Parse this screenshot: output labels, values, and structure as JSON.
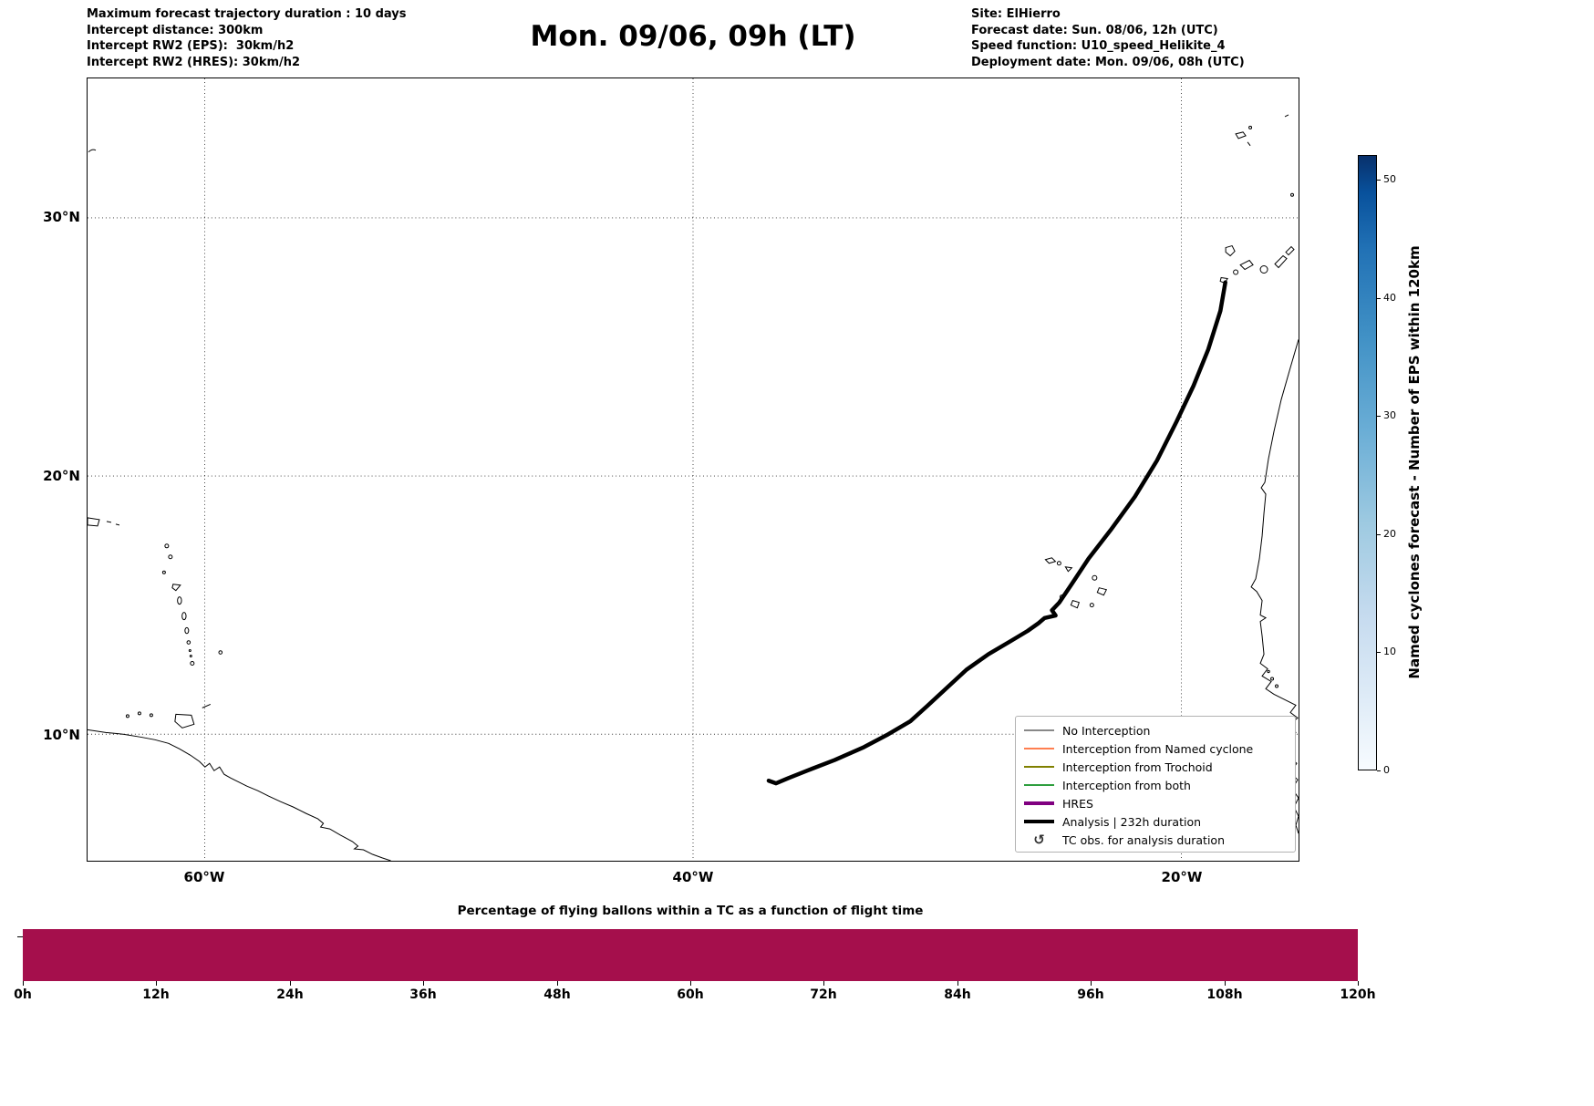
{
  "header": {
    "left_lines": [
      "Maximum forecast trajectory duration : 10 days",
      "Intercept distance: 300km",
      "Intercept RW2 (EPS):  30km/h2",
      "Intercept RW2 (HRES): 30km/h2"
    ],
    "title": "Mon. 09/06, 09h (LT)",
    "right_lines": [
      "Site: ElHierro",
      "Forecast date: Sun. 08/06, 12h (UTC)",
      "Speed function: U10_speed_Helikite_4",
      "Deployment date: Mon. 09/06, 08h (UTC)"
    ]
  },
  "map": {
    "lat_tick_labels": [
      "30°N",
      "20°N",
      "10°N"
    ],
    "lon_tick_labels": [
      "60°W",
      "40°W",
      "20°W"
    ],
    "extent": {
      "lon_min": -64.8,
      "lon_max": -15.2,
      "lat_min": 5.1,
      "lat_max": 35.4
    },
    "grid": {
      "lats": [
        30,
        20,
        10
      ],
      "lons": [
        -60,
        -40,
        -20
      ]
    }
  },
  "legend": {
    "items": [
      {
        "label": "No Interception",
        "color": "#888888",
        "thick": false
      },
      {
        "label": "Interception from Named cyclone",
        "color": "#ff7f50",
        "thick": false
      },
      {
        "label": "Interception from Trochoid",
        "color": "#808000",
        "thick": false
      },
      {
        "label": "Interception from both",
        "color": "#2e9e3e",
        "thick": false
      },
      {
        "label": "HRES",
        "color": "#800080",
        "thick": true
      },
      {
        "label": "Analysis | 232h duration",
        "color": "#000000",
        "thick": true
      },
      {
        "label": "TC obs. for analysis duration",
        "marker": "↺"
      }
    ]
  },
  "colorbar": {
    "label": "Named cyclones forecast - Number of EPS within 120km",
    "ticks": [
      "0",
      "10",
      "20",
      "30",
      "40",
      "50"
    ],
    "vmin": 0,
    "vmax": 52,
    "colormap": "Blues",
    "color_low": "#f7fbff",
    "color_high": "#08306b"
  },
  "bottom_chart": {
    "title": "Percentage of flying ballons within a TC as a function of flight time",
    "tick_labels": [
      "0h",
      "12h",
      "24h",
      "36h",
      "48h",
      "60h",
      "72h",
      "84h",
      "96h",
      "108h",
      "120h"
    ],
    "bar_color": "#a50f4c",
    "value_percent": 100
  },
  "chart_data": [
    {
      "type": "line",
      "subtype": "map-trajectory",
      "title": "Mon. 09/06, 09h (LT)",
      "x_ticks": [
        "60°W",
        "40°W",
        "20°W"
      ],
      "y_ticks": [
        "10°N",
        "20°N",
        "30°N"
      ],
      "xlim_lon": [
        -64.8,
        -15.2
      ],
      "ylim_lat": [
        5.1,
        35.4
      ],
      "grid": true,
      "legend_position": "lower right",
      "legend_entries": [
        "No Interception",
        "Interception from Named cyclone",
        "Interception from Trochoid",
        "Interception from both",
        "HRES",
        "Analysis | 232h duration",
        "TC obs. for analysis duration"
      ],
      "series": [
        {
          "name": "Analysis | 232h duration",
          "color": "#000000",
          "points_lon_lat": [
            [
              -18.2,
              27.5
            ],
            [
              -18.4,
              26.4
            ],
            [
              -18.9,
              24.9
            ],
            [
              -19.5,
              23.5
            ],
            [
              -20.2,
              22.1
            ],
            [
              -21.0,
              20.6
            ],
            [
              -21.9,
              19.2
            ],
            [
              -22.9,
              17.9
            ],
            [
              -23.8,
              16.8
            ],
            [
              -24.5,
              15.8
            ],
            [
              -25.0,
              15.1
            ],
            [
              -25.3,
              14.8
            ],
            [
              -25.15,
              14.6
            ],
            [
              -25.6,
              14.5
            ],
            [
              -25.85,
              14.3
            ],
            [
              -26.3,
              14.0
            ],
            [
              -27.0,
              13.6
            ],
            [
              -27.9,
              13.1
            ],
            [
              -28.8,
              12.5
            ],
            [
              -29.6,
              11.8
            ],
            [
              -30.4,
              11.1
            ],
            [
              -31.1,
              10.5
            ],
            [
              -32.0,
              10.0
            ],
            [
              -33.0,
              9.5
            ],
            [
              -34.2,
              9.0
            ],
            [
              -35.3,
              8.6
            ],
            [
              -36.1,
              8.3
            ],
            [
              -36.6,
              8.1
            ],
            [
              -36.9,
              8.2
            ]
          ]
        }
      ],
      "colorbar": {
        "label": "Named cyclones forecast - Number of EPS within 120km",
        "range": [
          0,
          52
        ],
        "ticks": [
          0,
          10,
          20,
          30,
          40,
          50
        ]
      }
    },
    {
      "type": "bar",
      "title": "Percentage of flying ballons within a TC as a function of flight time",
      "x_hours_range": [
        0,
        120
      ],
      "x_tick_labels": [
        "0h",
        "12h",
        "24h",
        "36h",
        "48h",
        "60h",
        "72h",
        "84h",
        "96h",
        "108h",
        "120h"
      ],
      "value_percent_constant": 100,
      "bar_color": "#a50f4c"
    }
  ]
}
